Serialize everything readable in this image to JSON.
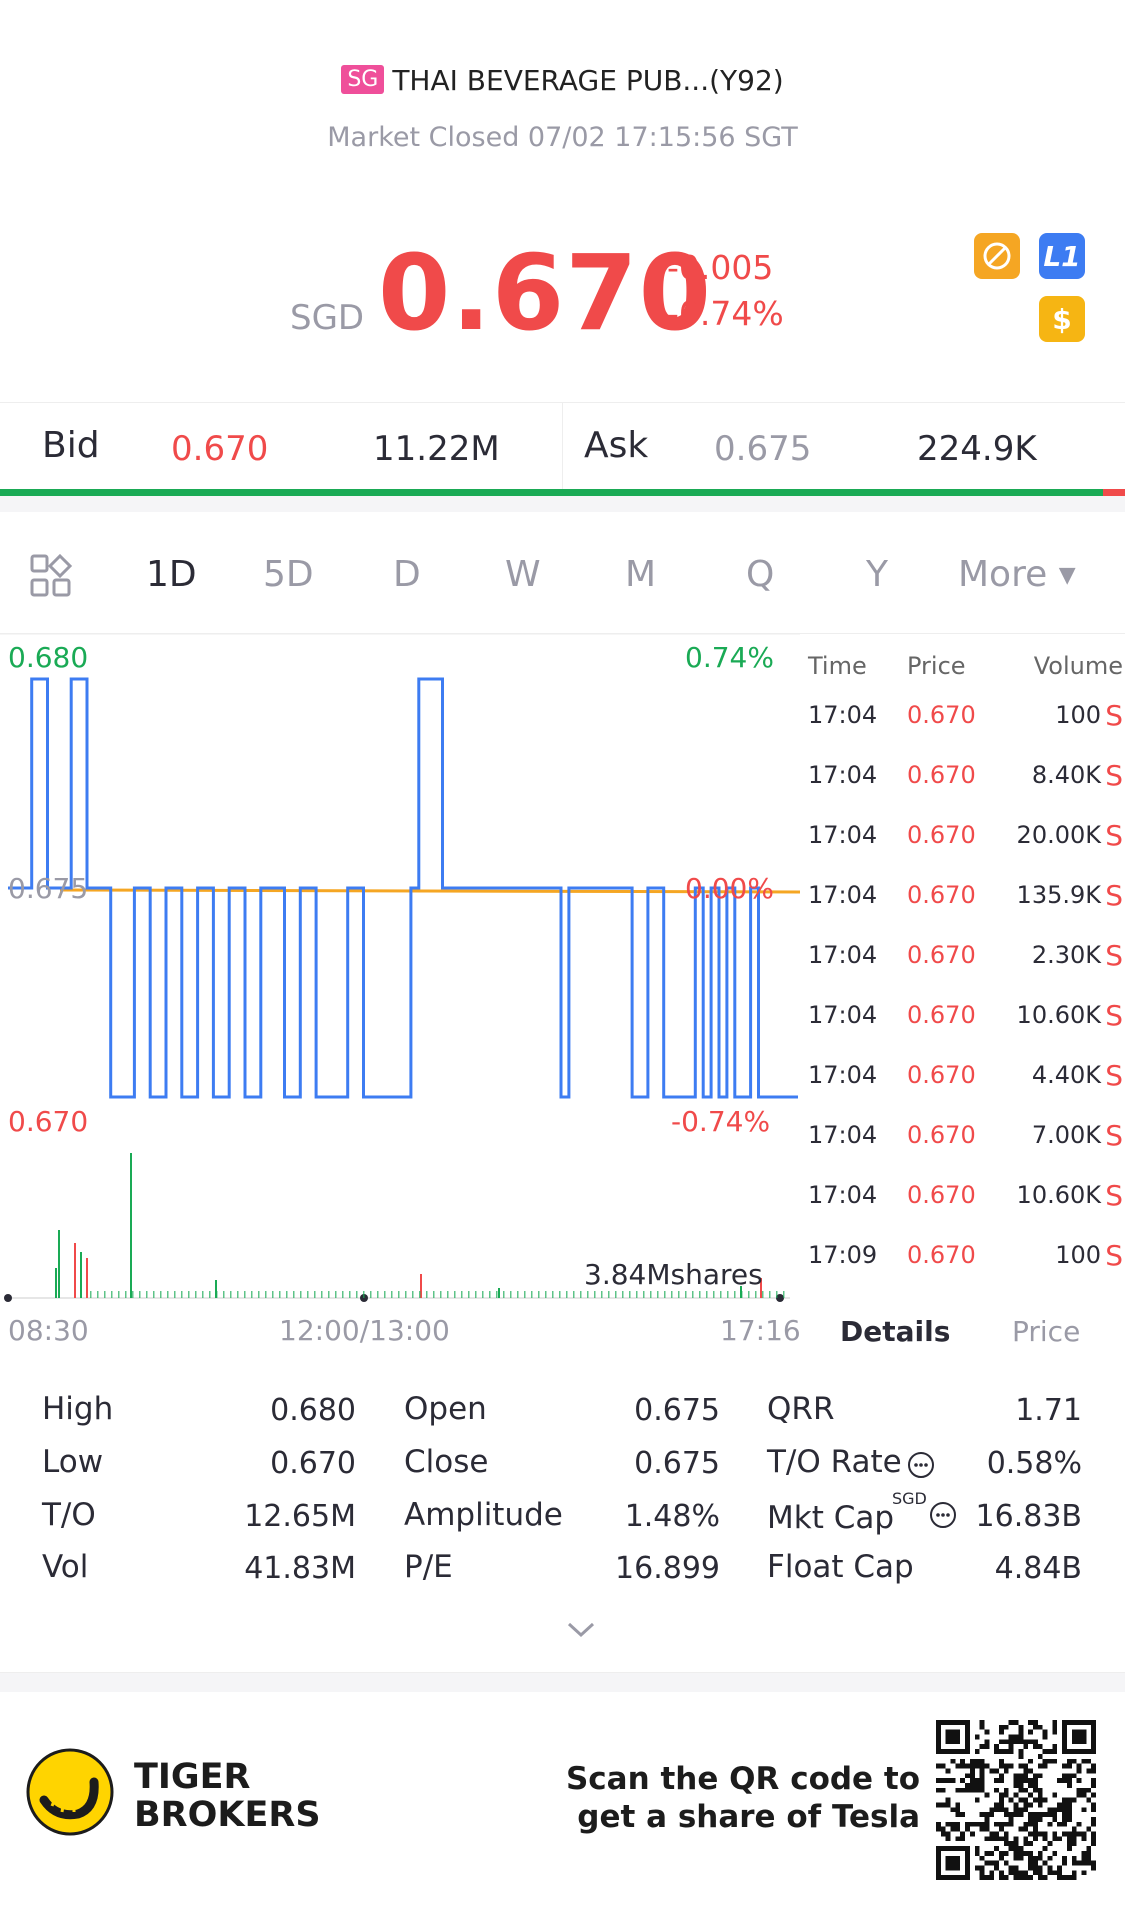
{
  "header": {
    "market_badge": "SG",
    "title": "THAI BEVERAGE PUB...(Y92)",
    "status": "Market Closed 07/02 17:15:56 SGT"
  },
  "quote": {
    "currency": "SGD",
    "price": "0.670",
    "change": "-0.005",
    "change_pct": "-0.74%",
    "badges": [
      "no-short-icon",
      "level1-icon",
      "dollar-icon"
    ],
    "badge_labels": {
      "level": "L1",
      "dollar": "$"
    },
    "colors": {
      "down": "#f04a4a",
      "up": "#1aaa55"
    }
  },
  "bid_ask": {
    "bid_label": "Bid",
    "bid_price": "0.670",
    "bid_size": "11.22M",
    "ask_label": "Ask",
    "ask_price": "0.675",
    "ask_size": "224.9K",
    "bid_ratio": 0.98
  },
  "tabs": {
    "items": [
      "1D",
      "5D",
      "D",
      "W",
      "M",
      "Q",
      "Y",
      "More"
    ],
    "active": "1D"
  },
  "chart": {
    "y_top_price": "0.680",
    "y_mid_price": "0.675",
    "y_bottom_price": "0.670",
    "y_top_pct": "0.74%",
    "y_mid_pct": "0.00%",
    "y_bottom_pct": "-0.74%",
    "volume_label": "3.84Mshares",
    "x_labels": [
      "08:30",
      "12:00/13:00",
      "17:16"
    ]
  },
  "chart_data": {
    "type": "line",
    "series": [
      {
        "values_description_free": true,
        "x": [
          0,
          3,
          3,
          5,
          5,
          8,
          8,
          10,
          10,
          13,
          13,
          16,
          16,
          18,
          18,
          20,
          20,
          22,
          22,
          24,
          24,
          26,
          26,
          28,
          28,
          30,
          30,
          32,
          32,
          35,
          35,
          37,
          37,
          39,
          39,
          43,
          43,
          45,
          45,
          51,
          51,
          52,
          52,
          55,
          55,
          57,
          57,
          70,
          70,
          71,
          71,
          79,
          79,
          81,
          81,
          83,
          83,
          87,
          87,
          88,
          88,
          89,
          89,
          90,
          90,
          91,
          91,
          92,
          92,
          94,
          94,
          95,
          95,
          96,
          96,
          100
        ],
        "y": [
          0.675,
          0.675,
          0.68,
          0.68,
          0.675,
          0.675,
          0.68,
          0.68,
          0.675,
          0.675,
          0.67,
          0.67,
          0.675,
          0.675,
          0.67,
          0.67,
          0.675,
          0.675,
          0.67,
          0.67,
          0.675,
          0.675,
          0.67,
          0.67,
          0.675,
          0.675,
          0.67,
          0.67,
          0.675,
          0.675,
          0.67,
          0.67,
          0.675,
          0.675,
          0.67,
          0.67,
          0.675,
          0.675,
          0.67,
          0.67,
          0.675,
          0.675,
          0.68,
          0.68,
          0.675,
          0.675,
          0.675,
          0.675,
          0.67,
          0.67,
          0.675,
          0.675,
          0.67,
          0.67,
          0.675,
          0.675,
          0.67,
          0.67,
          0.675,
          0.675,
          0.67,
          0.67,
          0.675,
          0.675,
          0.67,
          0.67,
          0.675,
          0.675,
          0.67,
          0.67,
          0.675,
          0.675,
          0.67,
          0.67,
          0.67,
          0.67
        ]
      }
    ],
    "reference_price": 0.675,
    "ylim": [
      0.67,
      0.68
    ],
    "xlabel": "",
    "ylabel": ""
  },
  "trades": {
    "headers": {
      "time": "Time",
      "price": "Price",
      "volume": "Volume"
    },
    "rows": [
      {
        "time": "17:04",
        "price": "0.670",
        "volume": "100",
        "side": "S"
      },
      {
        "time": "17:04",
        "price": "0.670",
        "volume": "8.40K",
        "side": "S"
      },
      {
        "time": "17:04",
        "price": "0.670",
        "volume": "20.00K",
        "side": "S"
      },
      {
        "time": "17:04",
        "price": "0.670",
        "volume": "135.9K",
        "side": "S"
      },
      {
        "time": "17:04",
        "price": "0.670",
        "volume": "2.30K",
        "side": "S"
      },
      {
        "time": "17:04",
        "price": "0.670",
        "volume": "10.60K",
        "side": "S"
      },
      {
        "time": "17:04",
        "price": "0.670",
        "volume": "4.40K",
        "side": "S"
      },
      {
        "time": "17:04",
        "price": "0.670",
        "volume": "7.00K",
        "side": "S"
      },
      {
        "time": "17:04",
        "price": "0.670",
        "volume": "10.60K",
        "side": "S"
      },
      {
        "time": "17:09",
        "price": "0.670",
        "volume": "100",
        "side": "S"
      }
    ],
    "tab_details": "Details",
    "tab_price": "Price"
  },
  "stats": {
    "high_label": "High",
    "high": "0.680",
    "low_label": "Low",
    "low": "0.670",
    "to_label": "T/O",
    "to": "12.65M",
    "vol_label": "Vol",
    "vol": "41.83M",
    "open_label": "Open",
    "open": "0.675",
    "close_label": "Close",
    "close": "0.675",
    "amplitude_label": "Amplitude",
    "amplitude": "1.48%",
    "pe_label": "P/E",
    "pe": "16.899",
    "qrr_label": "QRR",
    "qrr": "1.71",
    "to_rate_label": "T/O Rate",
    "to_rate": "0.58%",
    "mkt_cap_label": "Mkt Cap",
    "mkt_cap_currency": "SGD",
    "mkt_cap": "16.83B",
    "float_cap_label": "Float Cap",
    "float_cap": "4.84B"
  },
  "footer": {
    "brand_line1": "TIGER",
    "brand_line2": "BROKERS",
    "promo_line1": "Scan the QR code to",
    "promo_line2": "get a share of Tesla"
  }
}
